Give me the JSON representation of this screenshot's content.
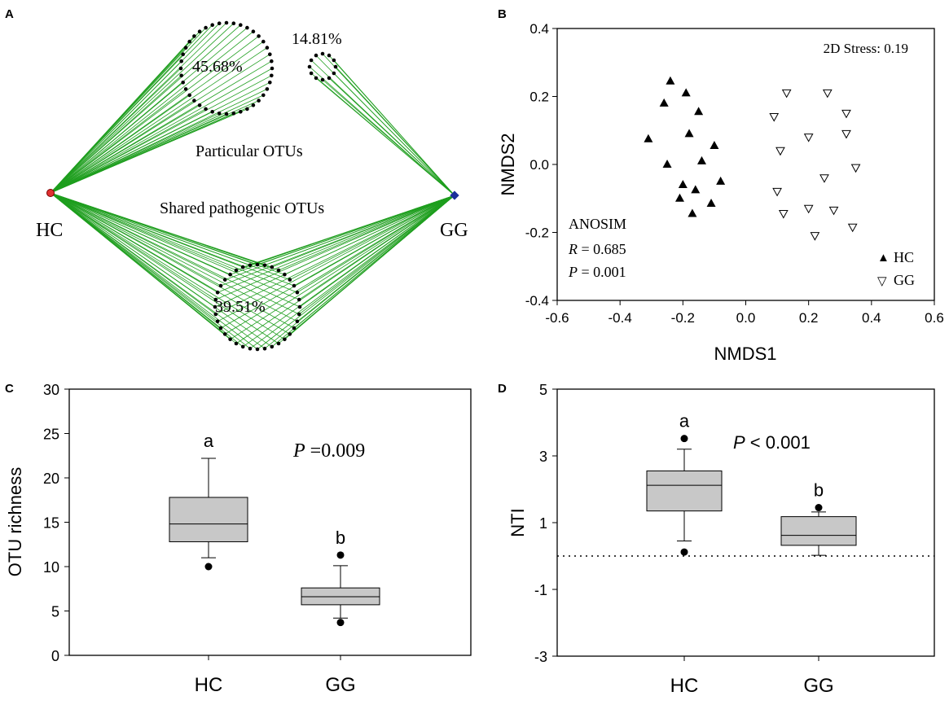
{
  "colors": {
    "edge_green": "#1e9e1e",
    "hc_node": "#e03030",
    "gg_node": "#1a2f9a",
    "box_fill": "#c8c8c8"
  },
  "chart_data": [
    {
      "panel": "A",
      "type": "network",
      "nodes": [
        "HC",
        "GG"
      ],
      "groups": [
        {
          "name": "hc_particular",
          "percent_label": "45.68%",
          "connected_to": [
            "HC"
          ]
        },
        {
          "name": "gg_particular",
          "percent_label": "14.81%",
          "connected_to": [
            "GG"
          ]
        },
        {
          "name": "shared",
          "percent_label": "39.51%",
          "connected_to": [
            "HC",
            "GG"
          ]
        }
      ],
      "labels": {
        "particular": "Particular OTUs",
        "shared": "Shared pathogenic OTUs"
      }
    },
    {
      "panel": "B",
      "type": "scatter",
      "xlabel": "NMDS1",
      "ylabel": "NMDS2",
      "xlim": [
        -0.6,
        0.6
      ],
      "ylim": [
        -0.4,
        0.4
      ],
      "xticks": [
        "-0.6",
        "-0.4",
        "-0.2",
        "0.0",
        "0.2",
        "0.4",
        "0.6"
      ],
      "yticks": [
        "0.4",
        "0.2",
        "0.0",
        "-0.2",
        "-0.4"
      ],
      "stress": "2D Stress: 0.19",
      "stats": {
        "title": "ANOSIM",
        "r_sym": "R",
        "r_val": " = 0.685",
        "p_sym": "P",
        "p_val": " = 0.001"
      },
      "series": [
        {
          "name": "HC",
          "marker": "▲",
          "x": [
            -0.24,
            -0.19,
            -0.26,
            -0.15,
            -0.31,
            -0.18,
            -0.1,
            -0.25,
            -0.14,
            -0.2,
            -0.08,
            -0.21,
            -0.16,
            -0.11,
            -0.17
          ],
          "y": [
            0.245,
            0.21,
            0.18,
            0.155,
            0.075,
            0.09,
            0.055,
            0.0,
            0.01,
            -0.06,
            -0.05,
            -0.1,
            -0.075,
            -0.115,
            -0.145
          ]
        },
        {
          "name": "GG",
          "marker": "▽",
          "x": [
            0.13,
            0.26,
            0.09,
            0.32,
            0.11,
            0.2,
            0.32,
            0.35,
            0.25,
            0.1,
            0.12,
            0.2,
            0.28,
            0.34,
            0.22
          ],
          "y": [
            0.21,
            0.21,
            0.14,
            0.15,
            0.04,
            0.08,
            0.09,
            -0.01,
            -0.04,
            -0.08,
            -0.145,
            -0.13,
            -0.135,
            -0.185,
            -0.21
          ]
        }
      ]
    },
    {
      "panel": "C",
      "type": "box",
      "ylabel": "OTU richness",
      "ylim": [
        0,
        30
      ],
      "yticks": [
        "0",
        "5",
        "10",
        "15",
        "20",
        "25",
        "30"
      ],
      "categories": [
        "HC",
        "GG"
      ],
      "boxes": [
        {
          "name": "HC",
          "whisker_low": 11.0,
          "q1": 12.8,
          "median": 14.8,
          "q3": 17.8,
          "whisker_high": 22.2,
          "outliers": [
            10.0
          ],
          "letter": "a"
        },
        {
          "name": "GG",
          "whisker_low": 4.2,
          "q1": 5.7,
          "median": 6.6,
          "q3": 7.6,
          "whisker_high": 10.1,
          "outliers": [
            11.3,
            3.7
          ],
          "letter": "b"
        }
      ],
      "p_sym": "P",
      "p_text": " =0.009"
    },
    {
      "panel": "D",
      "type": "box",
      "ylabel": "NTI",
      "ylim": [
        -3,
        5
      ],
      "yticks": [
        "5",
        "3",
        "1",
        "-1",
        "-3"
      ],
      "reference_line": 0,
      "categories": [
        "HC",
        "GG"
      ],
      "boxes": [
        {
          "name": "HC",
          "whisker_low": 0.45,
          "q1": 1.35,
          "median": 2.12,
          "q3": 2.55,
          "whisker_high": 3.2,
          "outliers": [
            3.52,
            0.12
          ],
          "letter": "a"
        },
        {
          "name": "GG",
          "whisker_low": 0.02,
          "q1": 0.32,
          "median": 0.62,
          "q3": 1.18,
          "whisker_high": 1.32,
          "outliers": [
            1.45
          ],
          "letter": "b"
        }
      ],
      "p_sym": "P",
      "p_text": " < 0.001"
    }
  ]
}
